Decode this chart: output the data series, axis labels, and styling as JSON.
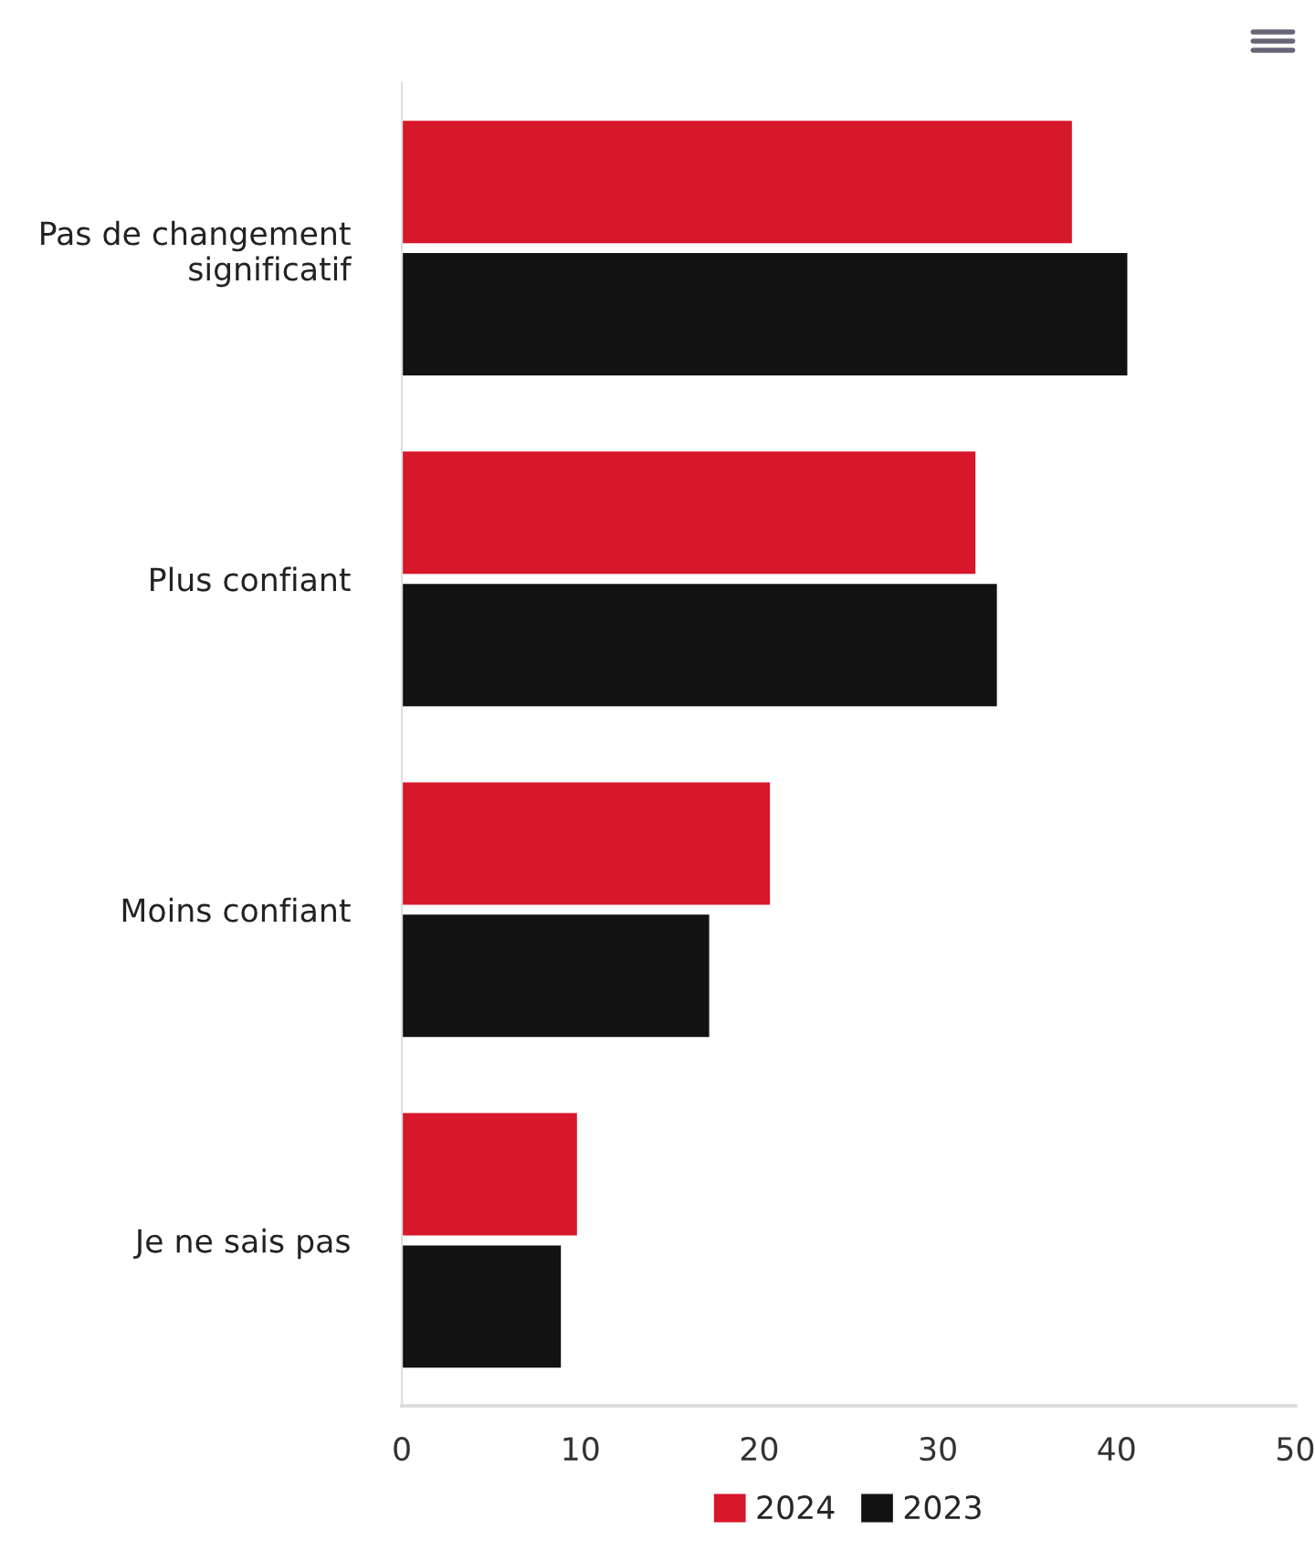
{
  "chart_data": {
    "type": "bar",
    "orientation": "horizontal",
    "categories": [
      "Pas de changement significatif",
      "Plus confiant",
      "Moins confiant",
      "Je ne sais pas"
    ],
    "series": [
      {
        "name": "2024",
        "color": "#d7172a",
        "values": [
          37.5,
          32.1,
          20.6,
          9.8
        ]
      },
      {
        "name": "2023",
        "color": "#121212",
        "values": [
          40.6,
          33.3,
          17.2,
          8.9
        ]
      }
    ],
    "xlim": [
      0,
      50
    ],
    "xticks": [
      0,
      10,
      20,
      30,
      40,
      50
    ],
    "grid": false,
    "legend": "bottom"
  }
}
